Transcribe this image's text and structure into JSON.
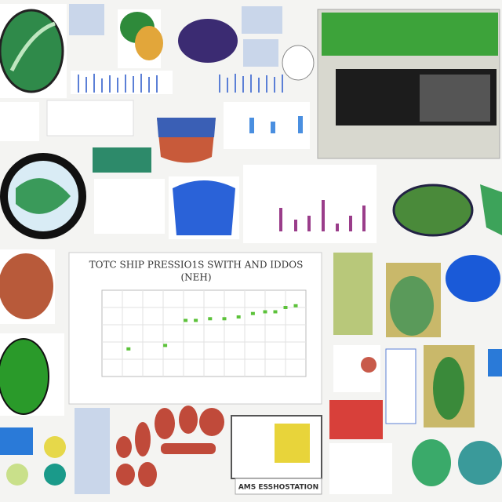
{
  "chart_data": {
    "type": "scatter",
    "title": "TOTC SHIP PRESSIO1S SWITH AND IDDOS",
    "subtitle": "(NEH)",
    "x": [
      1.3,
      3.1,
      4.1,
      4.6,
      5.3,
      6.0,
      6.7,
      7.4,
      8.0,
      8.5,
      9.0,
      9.5
    ],
    "values": [
      3.2,
      3.6,
      6.5,
      6.5,
      6.7,
      6.7,
      6.9,
      7.3,
      7.5,
      7.5,
      8.0,
      8.2
    ],
    "xlim": [
      0,
      10
    ],
    "ylim": [
      0,
      10
    ],
    "color": "#5cc23a",
    "grid": true
  },
  "caption": "AMS ESSHOSTATION"
}
